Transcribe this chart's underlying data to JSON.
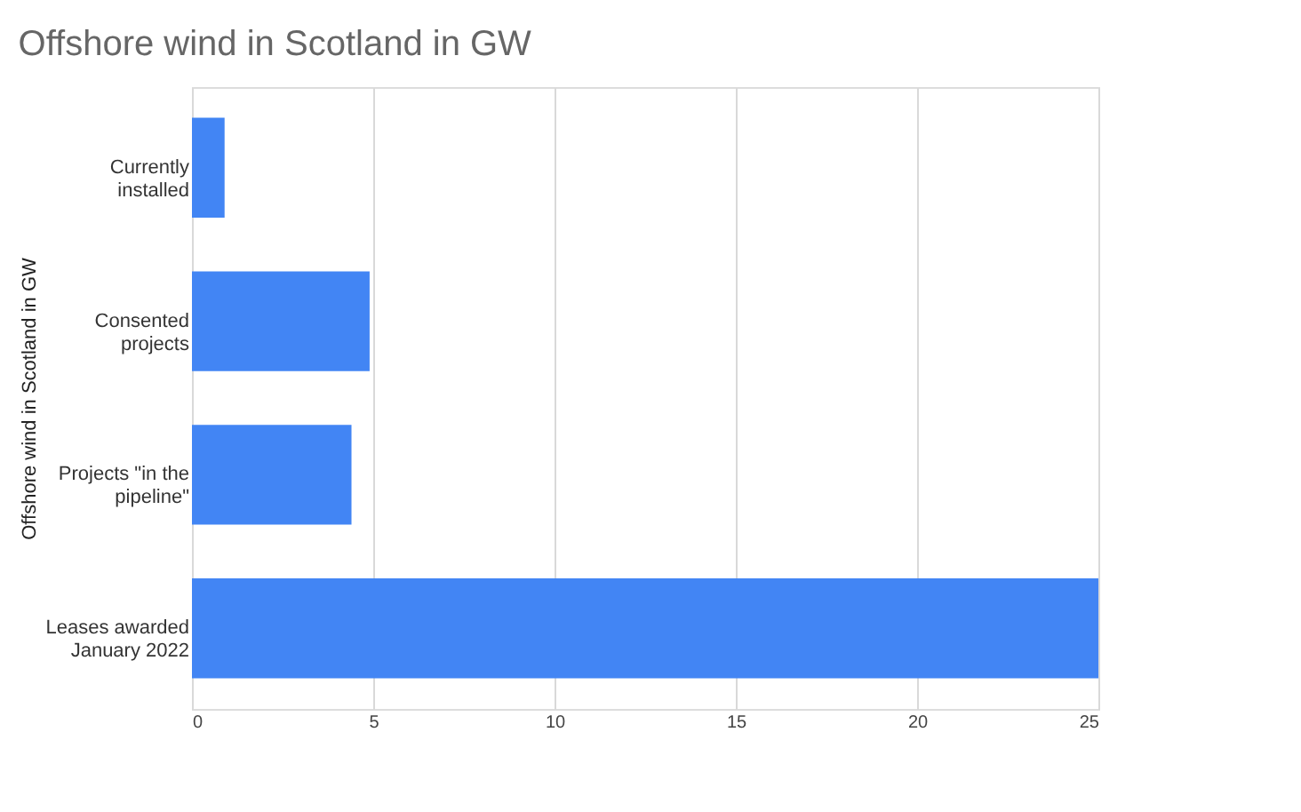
{
  "chart_data": {
    "type": "bar",
    "orientation": "horizontal",
    "title": "Offshore wind in Scotland in GW",
    "ylabel": "Offshore wind in Scotland in GW",
    "categories": [
      "Currently installed",
      "Consented projects",
      "Projects \"in the pipeline\"",
      "Leases awarded January 2022"
    ],
    "values": [
      0.9,
      4.9,
      4.4,
      25
    ],
    "color": "#4285f4",
    "xlim": [
      0,
      25
    ],
    "xticks": [
      0,
      5,
      10,
      15,
      20,
      25
    ],
    "grid": "x"
  }
}
